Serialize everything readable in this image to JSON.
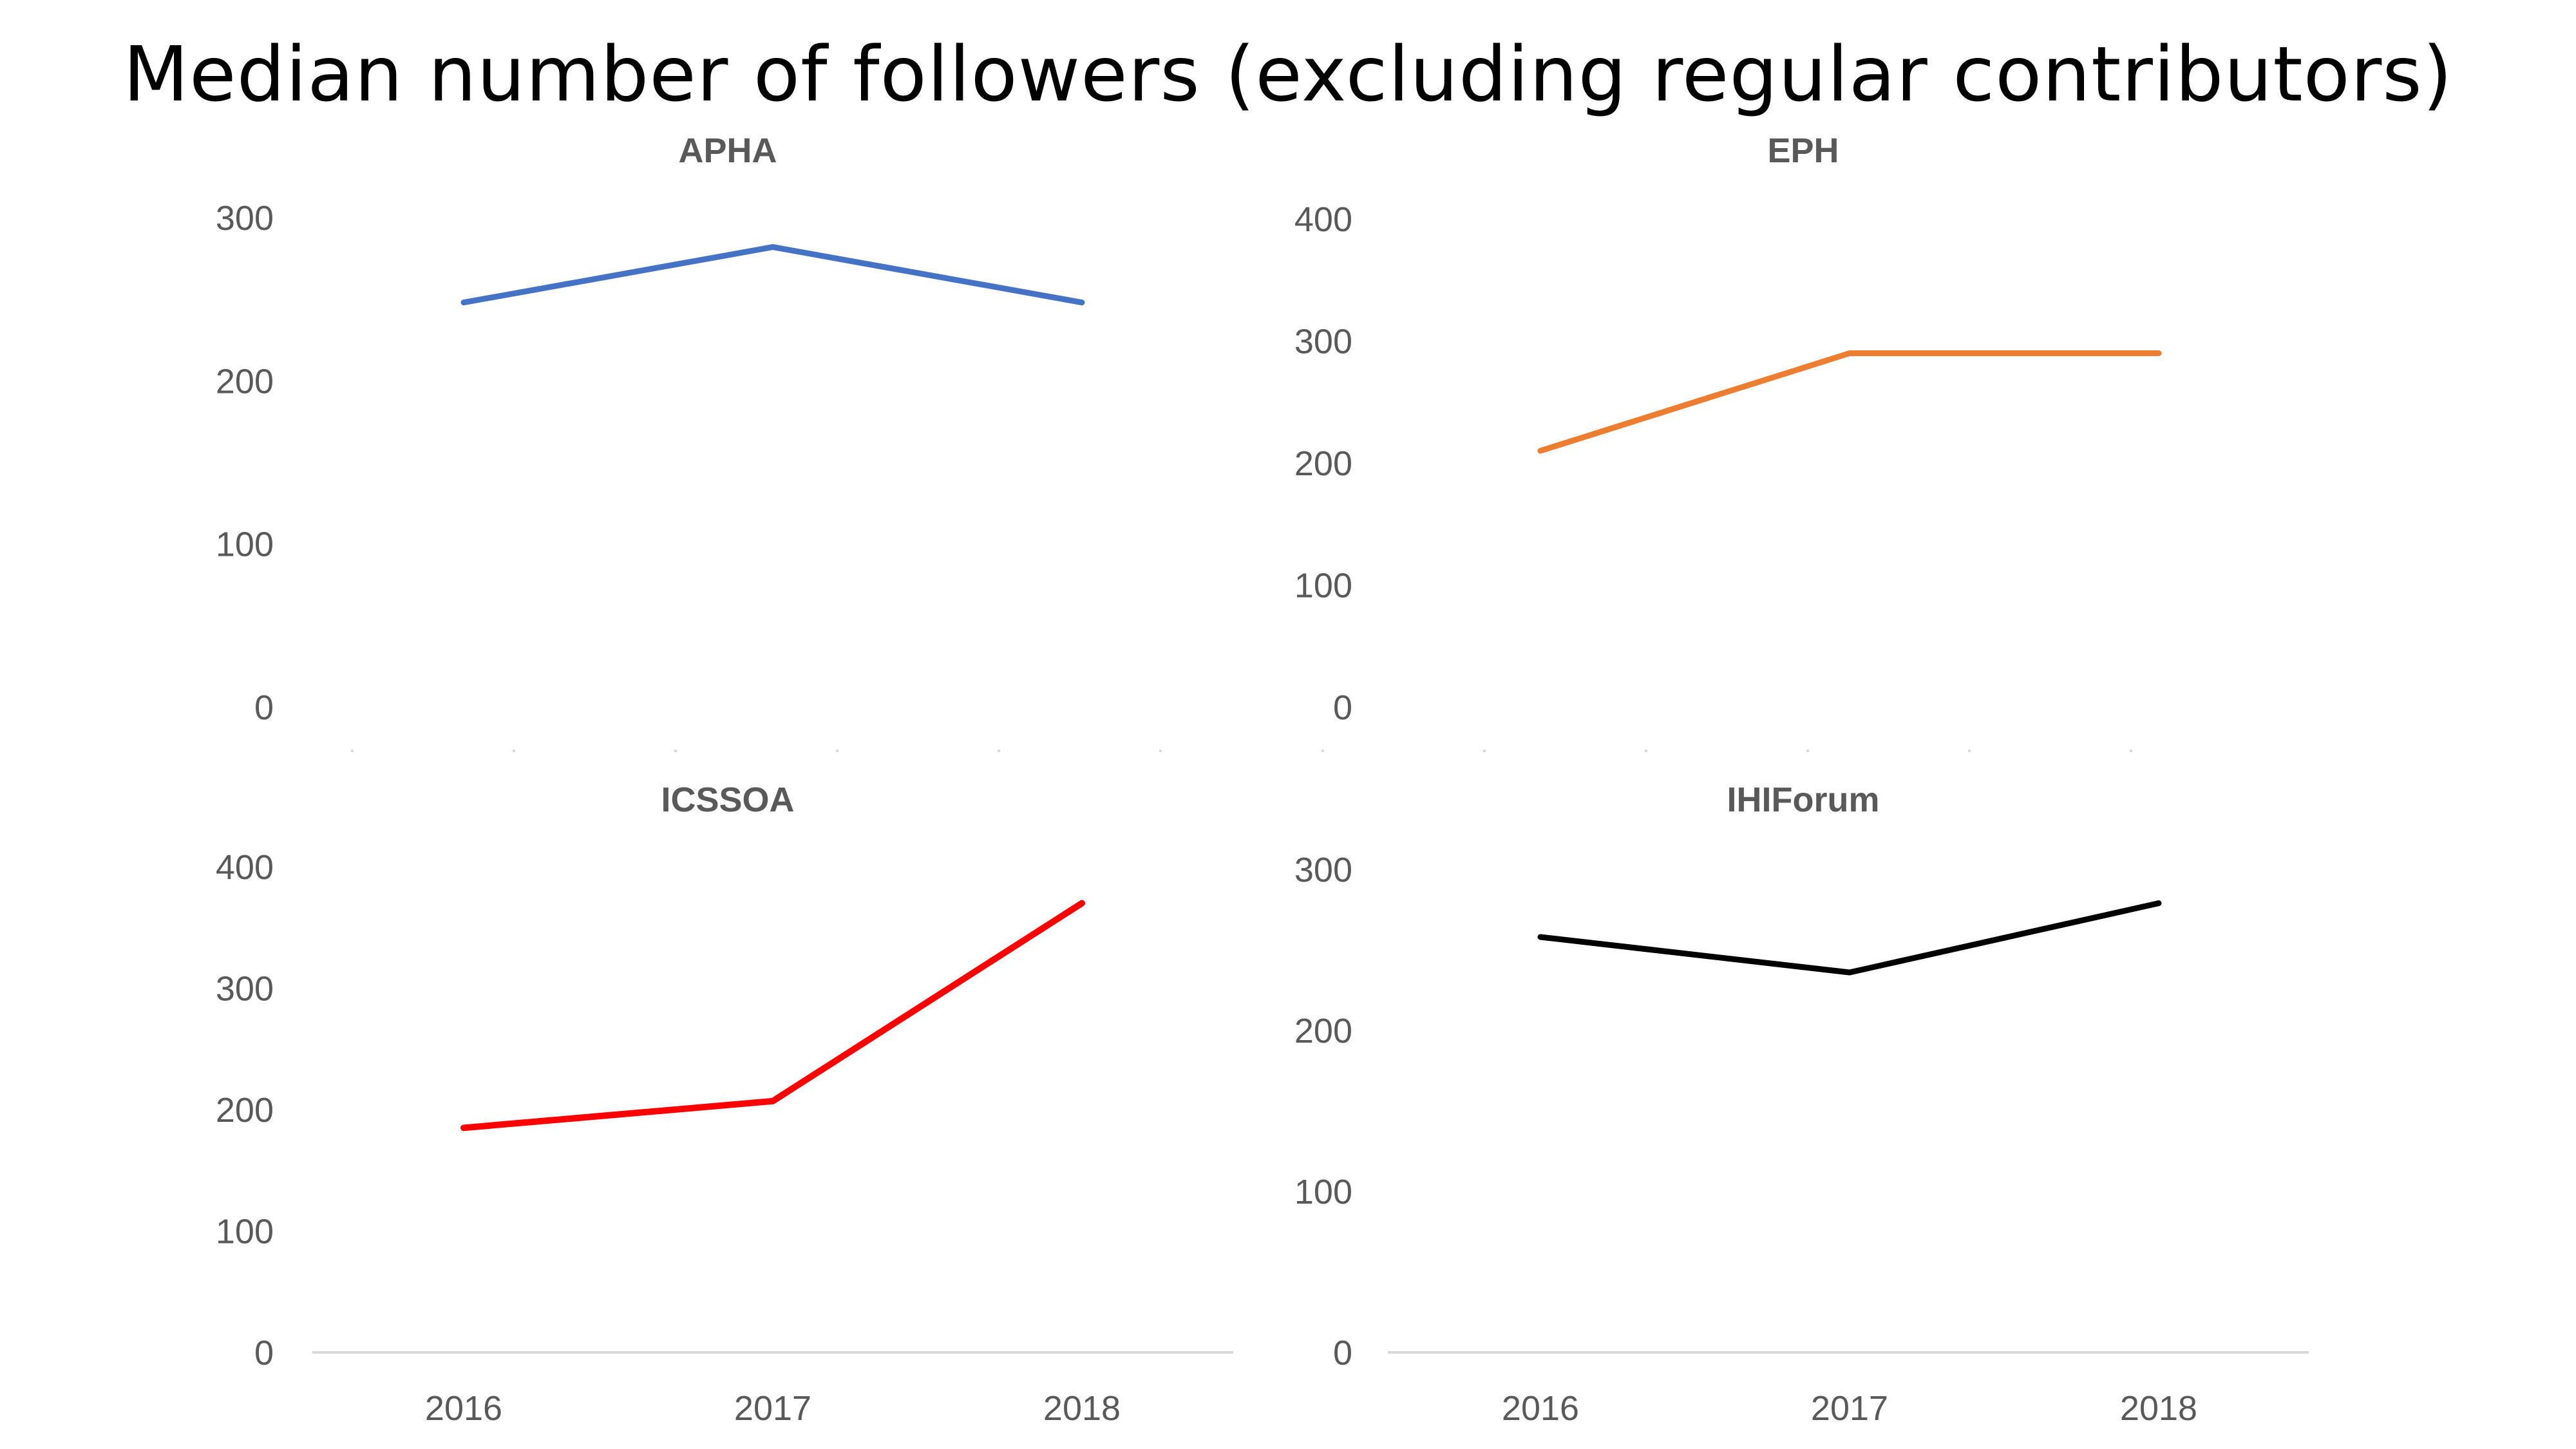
{
  "title": "Median number of followers (excluding regular contributors)",
  "chart_data": [
    {
      "type": "line",
      "title": "APHA",
      "categories": [
        "2016",
        "2017",
        "2018"
      ],
      "series": [
        {
          "name": "APHA",
          "values": [
            248,
            282,
            248
          ]
        }
      ],
      "color": "#4472C4",
      "ylim": [
        0,
        300
      ],
      "yticks": [
        "0",
        "100",
        "200",
        "300"
      ],
      "show_x_axis": false,
      "xlabel": "",
      "ylabel": ""
    },
    {
      "type": "line",
      "title": "EPH",
      "categories": [
        "2016",
        "2017",
        "2018"
      ],
      "series": [
        {
          "name": "EPH",
          "values": [
            210,
            290,
            290
          ]
        }
      ],
      "color": "#ED7D31",
      "ylim": [
        0,
        400
      ],
      "yticks": [
        "0",
        "100",
        "200",
        "300",
        "400"
      ],
      "show_x_axis": false,
      "xlabel": "",
      "ylabel": ""
    },
    {
      "type": "line",
      "title": "ICSSOA",
      "categories": [
        "2016",
        "2017",
        "2018"
      ],
      "series": [
        {
          "name": "ICSSOA",
          "values": [
            185,
            207,
            370
          ]
        }
      ],
      "color": "#FF0000",
      "ylim": [
        0,
        400
      ],
      "yticks": [
        "0",
        "100",
        "200",
        "300",
        "400"
      ],
      "show_x_axis": true,
      "xlabel": "",
      "ylabel": ""
    },
    {
      "type": "line",
      "title": "IHIForum",
      "categories": [
        "2016",
        "2017",
        "2018"
      ],
      "series": [
        {
          "name": "IHIForum",
          "values": [
            258,
            236,
            279
          ]
        }
      ],
      "color": "#000000",
      "ylim": [
        0,
        300
      ],
      "yticks": [
        "0",
        "100",
        "200",
        "300"
      ],
      "show_x_axis": true,
      "xlabel": "",
      "ylabel": ""
    }
  ]
}
